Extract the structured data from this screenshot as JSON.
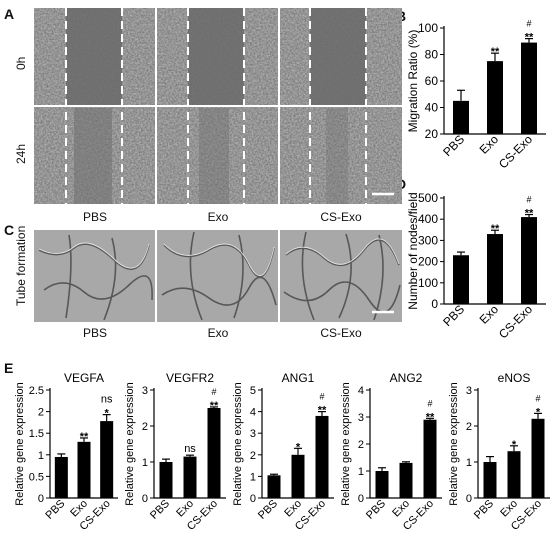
{
  "panel_labels": {
    "A": "A",
    "B": "B",
    "C": "C",
    "D": "D",
    "E": "E"
  },
  "panelA": {
    "row_labels": [
      "0h",
      "24h"
    ],
    "column_labels": [
      "PBS",
      "Exo",
      "CS-Exo"
    ]
  },
  "panelC": {
    "side_label": "Tube formation",
    "column_labels": [
      "PBS",
      "Exo",
      "CS-Exo"
    ]
  },
  "chart_data": [
    {
      "id": "B",
      "type": "bar",
      "categories": [
        "PBS",
        "Exo",
        "CS-Exo"
      ],
      "values": [
        45,
        75,
        89
      ],
      "errors": [
        8,
        6,
        3
      ],
      "annotations": [
        "",
        "**",
        "#\n**"
      ],
      "ylabel": "Migration Ratio (%)",
      "ylim": [
        20,
        100
      ],
      "yticks": [
        20,
        40,
        60,
        80,
        100
      ]
    },
    {
      "id": "D",
      "type": "bar",
      "categories": [
        "PBS",
        "Exo",
        "CS-Exo"
      ],
      "values": [
        230,
        330,
        410
      ],
      "errors": [
        15,
        18,
        12
      ],
      "annotations": [
        "",
        "**",
        "#\n**"
      ],
      "ylabel": "Number of nodes/field",
      "ylim": [
        0,
        500
      ],
      "yticks": [
        0,
        100,
        200,
        300,
        400,
        500
      ]
    },
    {
      "id": "E1",
      "type": "bar",
      "title": "VEGFA",
      "categories": [
        "PBS",
        "Exo",
        "CS-Exo"
      ],
      "values": [
        0.95,
        1.3,
        1.78
      ],
      "errors": [
        0.07,
        0.09,
        0.15
      ],
      "annotations": [
        "",
        "**",
        "ns\n*"
      ],
      "ylabel": "Relative gene expression",
      "ylim": [
        0,
        2.5
      ],
      "yticks": [
        0,
        0.5,
        1.0,
        1.5,
        2.0,
        2.5
      ]
    },
    {
      "id": "E2",
      "type": "bar",
      "title": "VEGFR2",
      "categories": [
        "PBS",
        "Exo",
        "CS-Exo"
      ],
      "values": [
        1.0,
        1.15,
        2.5
      ],
      "errors": [
        0.08,
        0.04,
        0.03
      ],
      "annotations": [
        "",
        "ns",
        "#\n**"
      ],
      "ylabel": "Relative gene expression",
      "ylim": [
        0,
        3
      ],
      "yticks": [
        0,
        1,
        2,
        3
      ]
    },
    {
      "id": "E3",
      "type": "bar",
      "title": "ANG1",
      "categories": [
        "PBS",
        "Exo",
        "CS-Exo"
      ],
      "values": [
        1.05,
        2.0,
        3.8
      ],
      "errors": [
        0.05,
        0.3,
        0.2
      ],
      "annotations": [
        "",
        "*",
        "#\n**"
      ],
      "ylabel": "Relative gene expression",
      "ylim": [
        0,
        5
      ],
      "yticks": [
        0,
        1,
        2,
        3,
        4,
        5
      ]
    },
    {
      "id": "E4",
      "type": "bar",
      "title": "ANG2",
      "categories": [
        "PBS",
        "Exo",
        "CS-Exo"
      ],
      "values": [
        1.0,
        1.3,
        2.9
      ],
      "errors": [
        0.12,
        0.04,
        0.05
      ],
      "annotations": [
        "",
        "",
        "#\n**"
      ],
      "ylabel": "Relative gene expression",
      "ylim": [
        0,
        4
      ],
      "yticks": [
        0,
        1,
        2,
        3,
        4
      ]
    },
    {
      "id": "E5",
      "type": "bar",
      "title": "eNOS",
      "categories": [
        "PBS",
        "Exo",
        "CS-Exo"
      ],
      "values": [
        1.0,
        1.3,
        2.2
      ],
      "errors": [
        0.15,
        0.15,
        0.15
      ],
      "annotations": [
        "",
        "*",
        "#\n*"
      ],
      "ylabel": "Relative gene expression",
      "ylim": [
        0,
        3
      ],
      "yticks": [
        0,
        1,
        2,
        3
      ]
    }
  ]
}
